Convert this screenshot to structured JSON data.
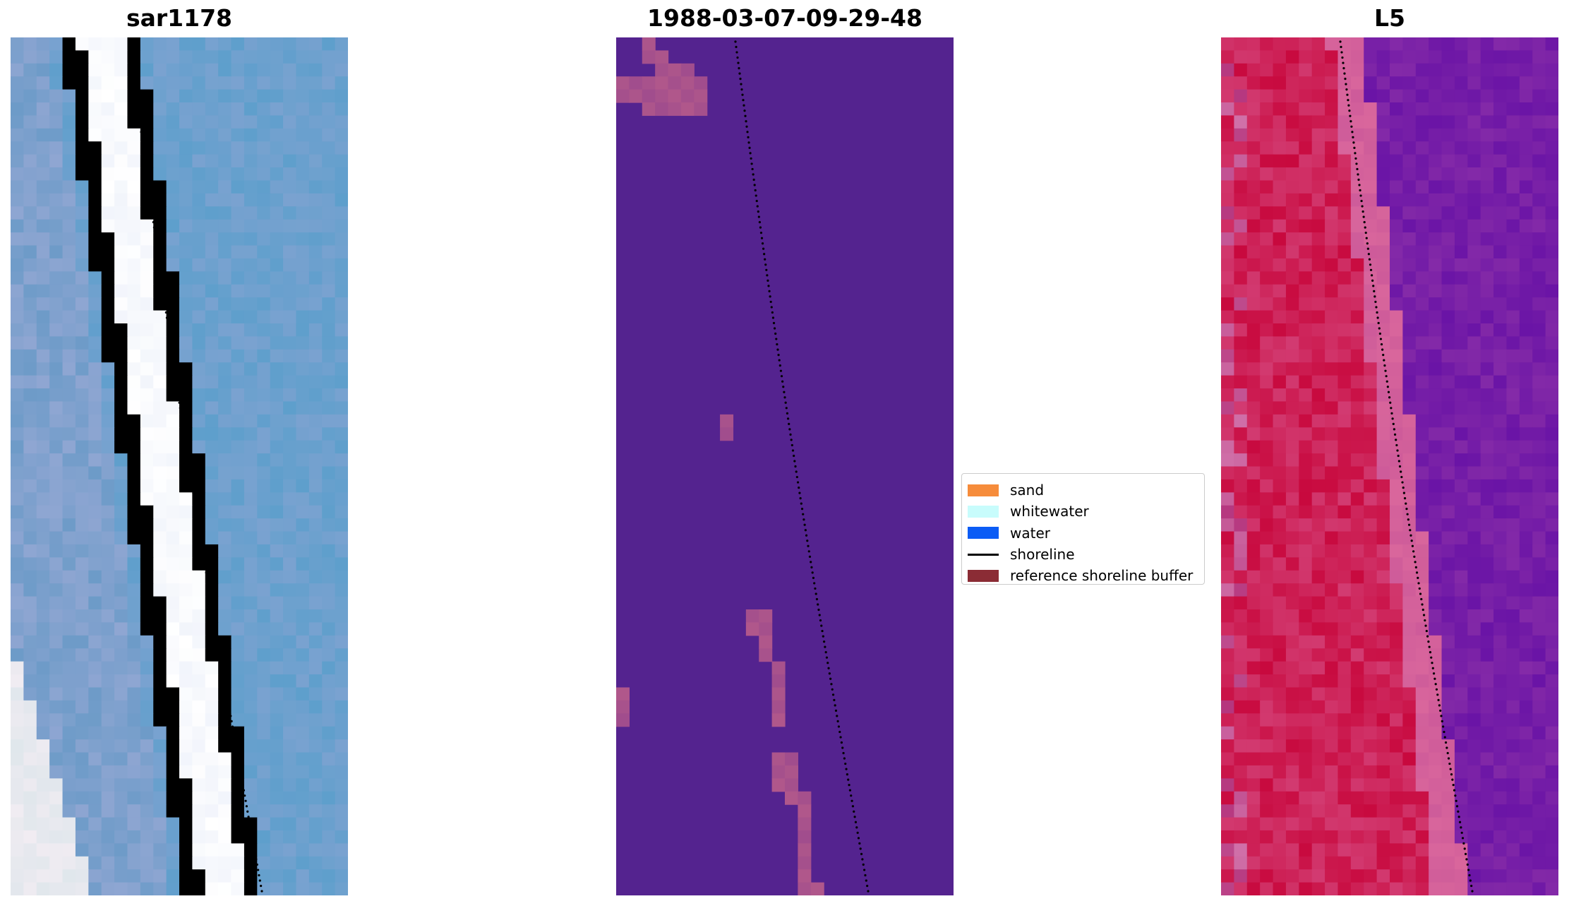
{
  "chart_data": [
    {
      "type": "heatmap",
      "title": "sar1178",
      "description_of_colors": "RGB satellite image: blue water, white/pale sand band running diagonally",
      "colors": {
        "water": "#6a9fcc",
        "sand": "#f5f4f8"
      }
    },
    {
      "type": "heatmap",
      "title": "1988-03-07-09-29-48",
      "colors": {
        "background": "#54238f",
        "buffer": "#b0578b"
      }
    },
    {
      "type": "heatmap",
      "title": "L5",
      "colors": {
        "low": "#6a14a6",
        "high": "#c8093e",
        "band": "#d9669c"
      }
    }
  ],
  "legend": {
    "items": [
      {
        "label": "sand",
        "color": "#f68c3b",
        "kind": "patch"
      },
      {
        "label": "whitewater",
        "color": "#c8fcfc",
        "kind": "patch"
      },
      {
        "label": "water",
        "color": "#0b5cf5",
        "kind": "patch"
      },
      {
        "label": "shoreline",
        "color": "#000000",
        "kind": "line"
      },
      {
        "label": "reference shoreline buffer",
        "color": "#8b2c35",
        "kind": "patch"
      }
    ]
  }
}
